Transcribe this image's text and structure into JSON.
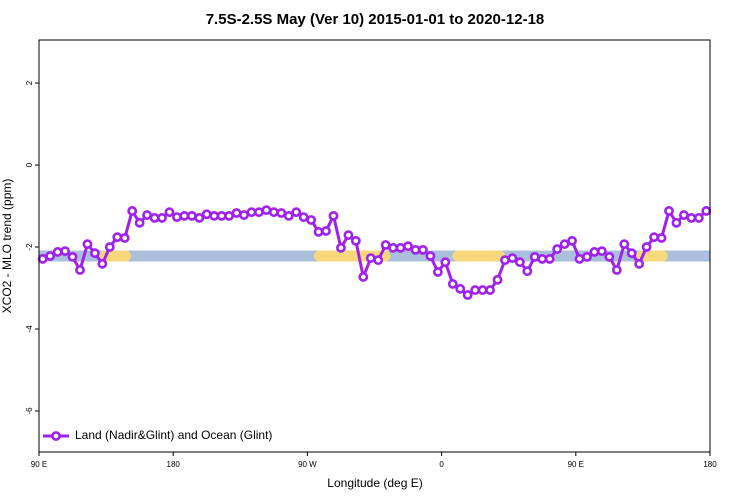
{
  "chart_data": {
    "type": "line",
    "title": "7.5S-2.5S May (Ver 10)   2015-01-01 to 2020-12-18",
    "x_label": "Longitude (deg E)",
    "y_label": "XCO2 - MLO trend (ppm)",
    "xlim": [
      90,
      540
    ],
    "ylim": [
      -7,
      3.05
    ],
    "xticks": [
      {
        "value": 90,
        "label": "90 E"
      },
      {
        "value": 180,
        "label": "180"
      },
      {
        "value": 270,
        "label": "90 W"
      },
      {
        "value": 360,
        "label": "0"
      },
      {
        "value": 450,
        "label": "90 E"
      },
      {
        "value": 540,
        "label": "180"
      }
    ],
    "yticks": [
      2,
      0,
      -2,
      -4,
      -6
    ],
    "legend_position": "bottom-left",
    "reference_band": {
      "value": -2.22,
      "ocean_color": "#a9bfdc",
      "land_color": "#f7d97c",
      "land_ranges": [
        [
          134,
          148
        ],
        [
          278,
          322
        ],
        [
          371,
          399
        ],
        [
          494,
          508
        ]
      ]
    },
    "x": [
      92.5,
      97.5,
      102.5,
      107.5,
      112.5,
      117.5,
      122.5,
      127.5,
      132.5,
      137.5,
      142.5,
      147.5,
      152.5,
      157.5,
      162.5,
      167.5,
      172.5,
      177.5,
      182.5,
      187.5,
      192.5,
      197.5,
      202.5,
      207.5,
      212.5,
      217.5,
      222.5,
      227.5,
      232.5,
      237.5,
      242.5,
      247.5,
      252.5,
      257.5,
      262.5,
      267.5,
      272.5,
      277.5,
      282.5,
      287.5,
      292.5,
      297.5,
      302.5,
      307.5,
      312.5,
      317.5,
      322.5,
      327.5,
      332.5,
      337.5,
      342.5,
      347.5,
      352.5,
      357.5,
      362.5,
      367.5,
      372.5,
      377.5,
      382.5,
      387.5,
      392.5,
      397.5,
      402.5,
      407.5,
      412.5,
      417.5,
      422.5,
      427.5,
      432.5,
      437.5,
      442.5,
      447.5,
      452.5,
      457.5,
      462.5,
      467.5,
      472.5,
      477.5,
      482.5,
      487.5,
      492.5,
      497.5,
      502.5,
      507.5,
      512.5,
      517.5,
      522.5,
      527.5,
      532.5,
      537.5
    ],
    "series": [
      {
        "name": "Land (Nadir&Glint) and Ocean (Glint)",
        "color": "#a020f0",
        "values": [
          -2.29,
          -2.22,
          -2.12,
          -2.1,
          -2.24,
          -2.56,
          -1.93,
          -2.15,
          -2.41,
          -2.0,
          -1.76,
          -1.78,
          -1.12,
          -1.41,
          -1.22,
          -1.29,
          -1.29,
          -1.15,
          -1.27,
          -1.24,
          -1.24,
          -1.29,
          -1.2,
          -1.24,
          -1.24,
          -1.24,
          -1.17,
          -1.22,
          -1.15,
          -1.15,
          -1.1,
          -1.15,
          -1.17,
          -1.24,
          -1.15,
          -1.27,
          -1.34,
          -1.63,
          -1.61,
          -1.24,
          -2.02,
          -1.71,
          -1.85,
          -2.73,
          -2.27,
          -2.32,
          -1.95,
          -2.02,
          -2.02,
          -1.98,
          -2.07,
          -2.07,
          -2.22,
          -2.61,
          -2.37,
          -2.9,
          -3.02,
          -3.17,
          -3.05,
          -3.05,
          -3.05,
          -2.8,
          -2.32,
          -2.27,
          -2.37,
          -2.59,
          -2.24,
          -2.29,
          -2.29,
          -2.05,
          -1.93,
          -1.85,
          -2.29,
          -2.24,
          -2.12,
          -2.1,
          -2.24,
          -2.56,
          -1.93,
          -2.15,
          -2.41,
          -2.0,
          -1.76,
          -1.78,
          -1.12,
          -1.41,
          -1.22,
          -1.29,
          -1.29,
          -1.12
        ]
      }
    ]
  }
}
